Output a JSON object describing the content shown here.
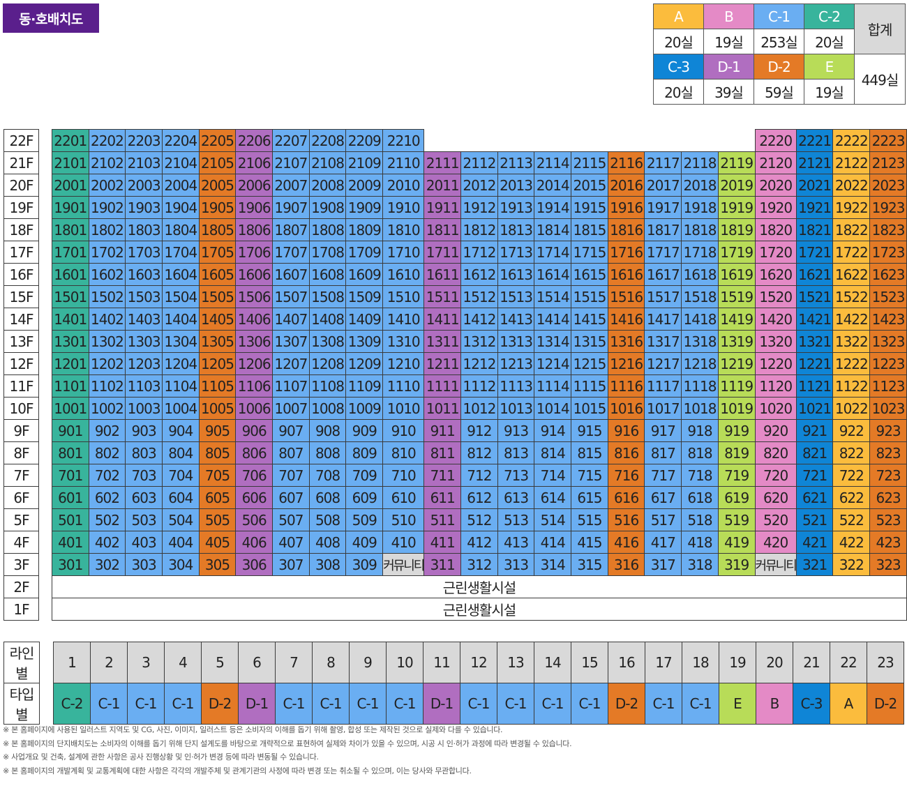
{
  "title": "동·호배치도",
  "colors": {
    "A": "#fbbc3d",
    "B": "#e48ac6",
    "C-1": "#6aaef2",
    "C-2": "#38b49c",
    "C-3": "#0f85d6",
    "D-1": "#b06ec0",
    "D-2": "#e47a26",
    "E": "#b8dc58"
  },
  "legend": {
    "row1": [
      {
        "type": "A",
        "count": "20실"
      },
      {
        "type": "B",
        "count": "19실"
      },
      {
        "type": "C-1",
        "count": "253실"
      },
      {
        "type": "C-2",
        "count": "20실"
      }
    ],
    "row2": [
      {
        "type": "C-3",
        "count": "20실"
      },
      {
        "type": "D-1",
        "count": "39실"
      },
      {
        "type": "D-2",
        "count": "59실"
      },
      {
        "type": "E",
        "count": "19실"
      }
    ],
    "total_label": "합계",
    "total_value": "449실"
  },
  "grid": {
    "line_types": [
      "C-2",
      "C-1",
      "C-1",
      "C-1",
      "D-2",
      "D-1",
      "C-1",
      "C-1",
      "C-1",
      "C-1",
      "D-1",
      "C-1",
      "C-1",
      "C-1",
      "C-1",
      "D-2",
      "C-1",
      "C-1",
      "E",
      "B",
      "C-3",
      "A",
      "D-2"
    ],
    "floors_top": [
      22,
      21,
      20,
      19,
      18,
      17,
      16,
      15,
      14,
      13,
      12,
      11,
      10,
      9,
      8,
      7,
      6,
      5,
      4,
      3
    ],
    "floor_22_lines": [
      1,
      2,
      3,
      4,
      5,
      6,
      7,
      8,
      9,
      10,
      20,
      21,
      22,
      23
    ],
    "floor_3_community_lines": [
      10,
      20
    ],
    "community_label": "커뮤니티",
    "retail_floors": [
      "2F",
      "1F"
    ],
    "retail_label": "근린생활시설"
  },
  "lines_row": {
    "line_label": "라인별",
    "type_label": "타입별",
    "numbers": [
      "1",
      "2",
      "3",
      "4",
      "5",
      "6",
      "7",
      "8",
      "9",
      "10",
      "11",
      "12",
      "13",
      "14",
      "15",
      "16",
      "17",
      "18",
      "19",
      "20",
      "21",
      "22",
      "23"
    ],
    "types": [
      "C-2",
      "C-1",
      "C-1",
      "C-1",
      "D-2",
      "D-1",
      "C-1",
      "C-1",
      "C-1",
      "C-1",
      "D-1",
      "C-1",
      "C-1",
      "C-1",
      "C-1",
      "D-2",
      "C-1",
      "C-1",
      "E",
      "B",
      "C-3",
      "A",
      "D-2"
    ]
  },
  "notes": [
    "※ 본 홈페이지에 사용된 일러스트 지역도 및 CG, 사진, 이미지, 일러스트 등은 소비자의 이해를 돕기 위해 촬영, 합성 또는 제작된 것으로 실제와 다를 수 있습니다.",
    "※ 본 홈페이지의 단지배치도는 소비자의 이해를 돕기 위해 단지 설계도를 바탕으로 개략적으로 표현하여 실제와 차이가 있을 수 있으며, 시공 시 인·허가 과정에 따라 변경될 수 있습니다.",
    "※ 사업개요 및 건축, 설계에 관한 사항은 공사 진행상황 및 인·허가 변경 등에 따라 변동될 수 있습니다.",
    "※ 본 홈페이지의 개발계획 및 교통계획에 대한 사항은 각각의 개발주체 및 관계기관의 사정에 따라 변경 또는 취소될 수 있으며, 이는 당사와 무관합니다."
  ]
}
